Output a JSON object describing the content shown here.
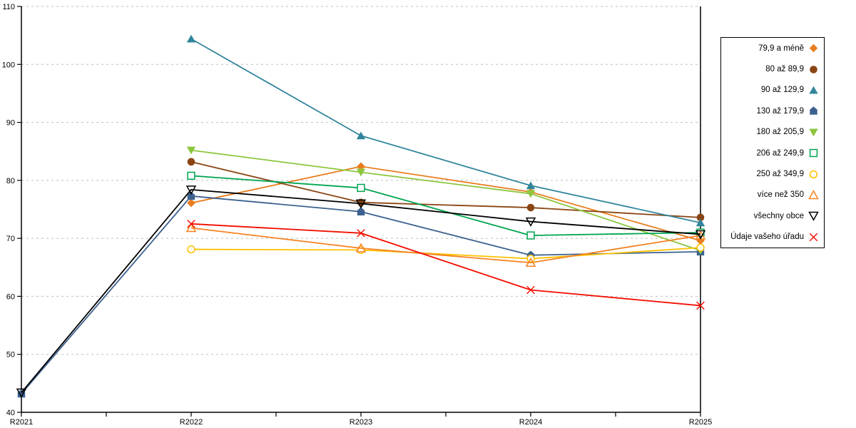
{
  "chart_data": {
    "type": "line",
    "title": "",
    "xlabel": "",
    "ylabel": "",
    "categories": [
      "R2021",
      "R2022",
      "R2023",
      "R2024",
      "R2025"
    ],
    "ylim": [
      40,
      110
    ],
    "ytick_step": 10,
    "grid": "horizontal-dashed",
    "grid_color": "#bfbfbf",
    "axis_color": "#000000",
    "legend_position": "right",
    "series": [
      {
        "name": "79,9 a méně",
        "color": "#e87d1e",
        "marker": "diamond",
        "values": [
          null,
          76.1,
          82.4,
          78.0,
          69.6
        ]
      },
      {
        "name": "80 až 89,9",
        "color": "#8a4513",
        "marker": "circle",
        "values": [
          null,
          83.2,
          76.2,
          75.3,
          73.6
        ]
      },
      {
        "name": "90 až 129,9",
        "color": "#31859c",
        "marker": "triangle-up",
        "values": [
          null,
          104.4,
          87.7,
          79.1,
          72.7
        ]
      },
      {
        "name": "130 až 179,9",
        "color": "#3c618f",
        "marker": "pentagon",
        "values": [
          43.2,
          77.3,
          74.6,
          67.1,
          67.7
        ]
      },
      {
        "name": "180 až 205,9",
        "color": "#8cc63e",
        "marker": "triangle-down",
        "values": [
          null,
          85.2,
          81.4,
          77.7,
          67.9
        ]
      },
      {
        "name": "206 až 249,9",
        "color": "#00a551",
        "marker": "square-open",
        "values": [
          null,
          80.8,
          78.7,
          70.5,
          71.0
        ]
      },
      {
        "name": "250 až 349,9",
        "color": "#ffc000",
        "marker": "circle-open",
        "values": [
          null,
          68.1,
          68.0,
          66.5,
          68.4
        ]
      },
      {
        "name": "více než 350",
        "color": "#f58220",
        "marker": "triangle-up-open",
        "values": [
          null,
          71.8,
          68.3,
          65.8,
          70.5
        ]
      },
      {
        "name": "všechny obce",
        "color": "#000000",
        "marker": "triangle-down-open",
        "values": [
          43.4,
          78.4,
          76.0,
          72.9,
          70.7
        ]
      },
      {
        "name": "Údaje vašeho úřadu",
        "color": "#f30d00",
        "marker": "x",
        "values": [
          null,
          72.5,
          70.9,
          61.1,
          58.4
        ]
      }
    ]
  }
}
